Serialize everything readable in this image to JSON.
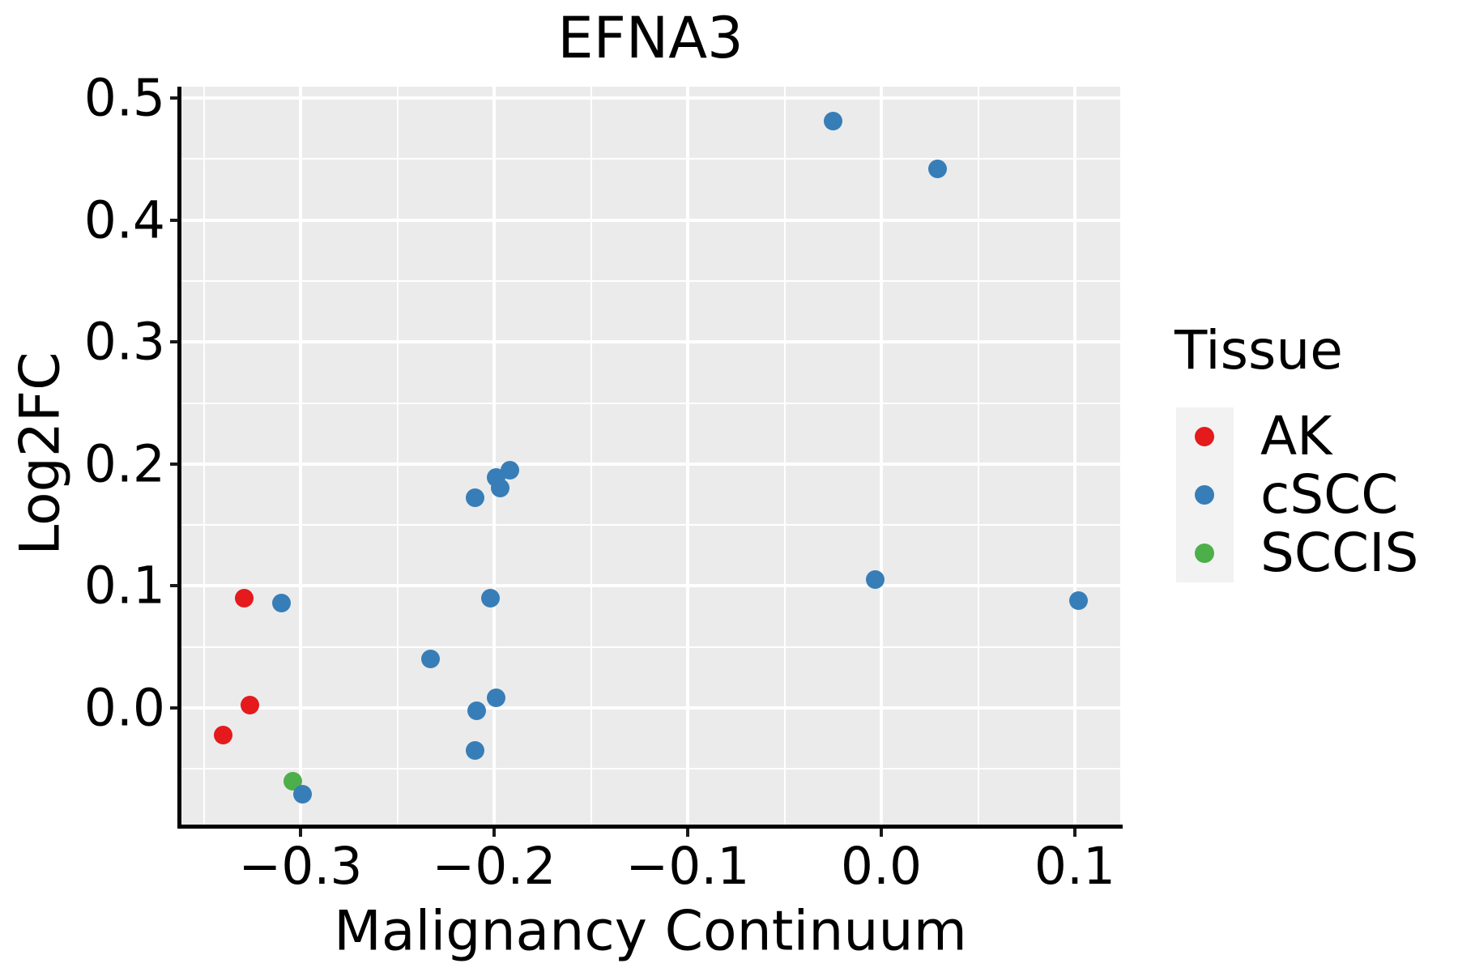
{
  "chart_data": {
    "type": "scatter",
    "title": "EFNA3",
    "xlabel": "Malignancy Continuum",
    "ylabel": "Log2FC",
    "xlim": [
      -0.362,
      0.123
    ],
    "ylim": [
      -0.097,
      0.509
    ],
    "x_tick_values": [
      -0.3,
      -0.2,
      -0.1,
      0.0,
      0.1
    ],
    "x_tick_labels": [
      "−0.3",
      "−0.2",
      "−0.1",
      "0.0",
      "0.1"
    ],
    "y_tick_values": [
      0.0,
      0.1,
      0.2,
      0.3,
      0.4,
      0.5
    ],
    "y_tick_labels": [
      "0.0",
      "0.1",
      "0.2",
      "0.3",
      "0.4",
      "0.5"
    ],
    "x_minor_gridlines": [
      -0.35,
      -0.25,
      -0.15,
      -0.05,
      0.05
    ],
    "y_minor_gridlines": [
      -0.05,
      0.05,
      0.15,
      0.25,
      0.35,
      0.45
    ],
    "grid": true,
    "legend_position": "right",
    "legend": {
      "title": "Tissue"
    },
    "series": [
      {
        "name": "AK",
        "color": "#E41A1C",
        "points": [
          [
            -0.329,
            0.09
          ],
          [
            -0.326,
            0.002
          ],
          [
            -0.34,
            -0.022
          ]
        ]
      },
      {
        "name": "cSCC",
        "color": "#377EB8",
        "points": [
          [
            -0.31,
            0.086
          ],
          [
            -0.299,
            -0.071
          ],
          [
            -0.233,
            0.04
          ],
          [
            -0.21,
            0.172
          ],
          [
            -0.202,
            0.09
          ],
          [
            -0.197,
            0.18
          ],
          [
            -0.199,
            0.189
          ],
          [
            -0.192,
            0.195
          ],
          [
            -0.21,
            -0.035
          ],
          [
            -0.209,
            -0.002
          ],
          [
            -0.199,
            0.008
          ],
          [
            -0.025,
            0.481
          ],
          [
            0.029,
            0.442
          ],
          [
            -0.003,
            0.105
          ],
          [
            0.102,
            0.088
          ]
        ]
      },
      {
        "name": "SCCIS",
        "color": "#4DAF4A",
        "points": [
          [
            -0.304,
            -0.06
          ]
        ]
      }
    ],
    "colors": {
      "panel_bg": "#EBEBEB",
      "grid": "#FFFFFF",
      "axis": "#000000",
      "legend_key_bg": "#F2F2F2",
      "text": "#000000"
    }
  }
}
